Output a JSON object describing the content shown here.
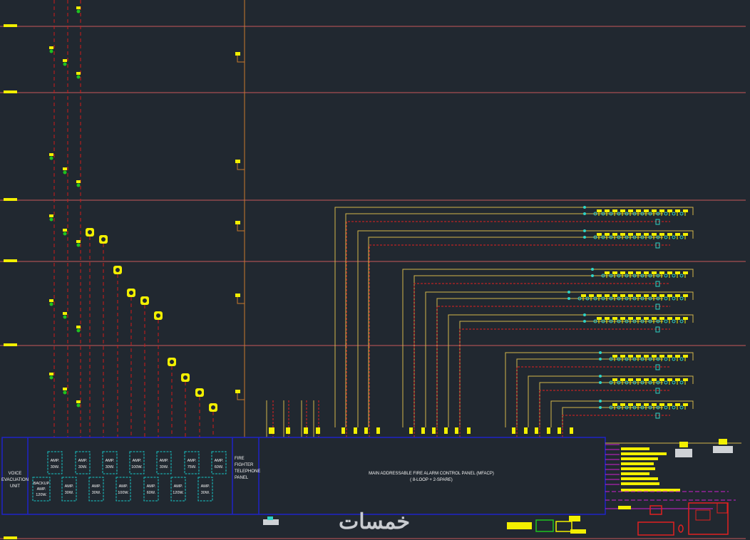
{
  "drawing": {
    "voice_evac_label_1": "VOICE",
    "voice_evac_label_2": "EVACUATION",
    "voice_evac_label_3": "UNIT",
    "telephone_label_1": "FIRE",
    "telephone_label_2": "FIGHTER",
    "telephone_label_3": "TELEPHONE",
    "telephone_label_4": "PANEL",
    "mfacp_label_1": "MAIN ADDRESSABLE FIRE ALARM CONTROL PANEL (MFACP)",
    "mfacp_label_2": "( 8-LOOP + 2-SPARE)",
    "backup_amp_1": "BACKUP",
    "backup_amp_2": "AMP.",
    "backup_amp_3": "120W.",
    "amp_word": "AMP.",
    "amps_top": [
      "30W.",
      "30W.",
      "30W.",
      "100W.",
      "30W.",
      "75W.",
      "60W."
    ],
    "amps_bottom": [
      "30W.",
      "30W.",
      "100W.",
      "60W.",
      "120W.",
      "30W."
    ],
    "watermark": "خمسات"
  },
  "colors": {
    "background": "#212830",
    "floor_line": "#c8585a",
    "riser": "#c97a2c",
    "speaker_line": "#d11a1a",
    "loop_line": "#d4b64a",
    "loop_return": "#e22020",
    "panel_border": "#1f22c8",
    "amp_box": "#17c6c6",
    "device": "#f2ef00",
    "strobe": "#1fc21f",
    "detector": "#2fd3c6",
    "magenta": "#d021d0"
  }
}
